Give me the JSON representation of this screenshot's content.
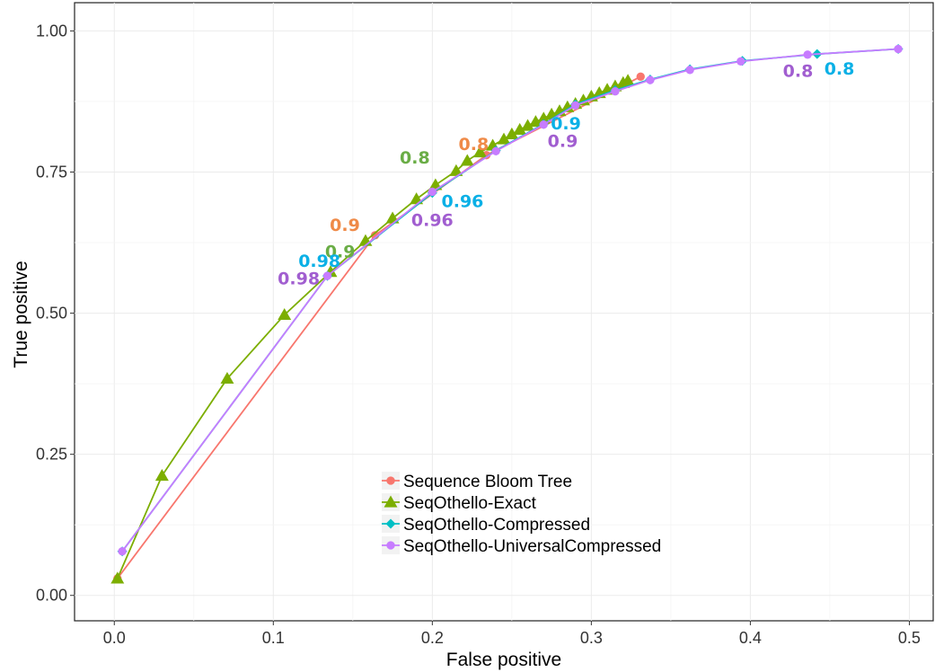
{
  "chart_data": {
    "type": "line",
    "xlabel": "False positive",
    "ylabel": "True positive",
    "xlim": [
      -0.025,
      0.515
    ],
    "ylim": [
      -0.045,
      1.05
    ],
    "x_ticks": [
      "0.0",
      "0.1",
      "0.2",
      "0.3",
      "0.4",
      "0.5"
    ],
    "y_ticks": [
      "0.00",
      "0.25",
      "0.50",
      "0.75",
      "1.00"
    ],
    "grid": true,
    "legend_position": "bottom-center",
    "series": [
      {
        "name": "Sequence Bloom Tree",
        "color": "#f8766d",
        "marker": "circle",
        "x": [
          0.002,
          0.164,
          0.234,
          0.331
        ],
        "y": [
          0.03,
          0.638,
          0.78,
          0.919
        ]
      },
      {
        "name": "SeqOthello-Exact",
        "color": "#7cae00",
        "marker": "triangle",
        "x": [
          0.002,
          0.03,
          0.071,
          0.107,
          0.136,
          0.158,
          0.175,
          0.19,
          0.202,
          0.215,
          0.222,
          0.23,
          0.238,
          0.245,
          0.25,
          0.255,
          0.26,
          0.265,
          0.27,
          0.275,
          0.28,
          0.285,
          0.29,
          0.295,
          0.3,
          0.305,
          0.31,
          0.315,
          0.32,
          0.323
        ],
        "y": [
          0.03,
          0.212,
          0.384,
          0.497,
          0.573,
          0.628,
          0.668,
          0.702,
          0.727,
          0.752,
          0.77,
          0.785,
          0.797,
          0.808,
          0.817,
          0.825,
          0.832,
          0.839,
          0.845,
          0.852,
          0.858,
          0.865,
          0.871,
          0.877,
          0.884,
          0.89,
          0.896,
          0.902,
          0.908,
          0.912
        ]
      },
      {
        "name": "SeqOthello-Compressed",
        "color": "#00bfc4",
        "marker": "diamond",
        "x": [
          0.005,
          0.134,
          0.2,
          0.24,
          0.27,
          0.29,
          0.315,
          0.337,
          0.362,
          0.395,
          0.442,
          0.493
        ],
        "y": [
          0.078,
          0.566,
          0.713,
          0.788,
          0.835,
          0.87,
          0.895,
          0.914,
          0.932,
          0.947,
          0.959,
          0.968
        ]
      },
      {
        "name": "SeqOthello-UniversalCompressed",
        "color": "#c77cff",
        "marker": "circle",
        "x": [
          0.005,
          0.134,
          0.2,
          0.24,
          0.27,
          0.29,
          0.315,
          0.337,
          0.362,
          0.394,
          0.436,
          0.493
        ],
        "y": [
          0.078,
          0.566,
          0.715,
          0.787,
          0.834,
          0.868,
          0.893,
          0.913,
          0.931,
          0.946,
          0.958,
          0.968
        ]
      }
    ],
    "annotations": [
      {
        "text": "0.8",
        "x": 0.226,
        "y": 0.8,
        "color": "#ef8a48"
      },
      {
        "text": "0.9",
        "x": 0.145,
        "y": 0.657,
        "color": "#ef8a48"
      },
      {
        "text": "0.8",
        "x": 0.189,
        "y": 0.776,
        "color": "#6aad46"
      },
      {
        "text": "0.9",
        "x": 0.142,
        "y": 0.61,
        "color": "#6aad46"
      },
      {
        "text": "0.98",
        "x": 0.129,
        "y": 0.593,
        "color": "#0ab0e6"
      },
      {
        "text": "0.96",
        "x": 0.219,
        "y": 0.699,
        "color": "#0ab0e6"
      },
      {
        "text": "0.9",
        "x": 0.284,
        "y": 0.837,
        "color": "#0ab0e6"
      },
      {
        "text": "0.8",
        "x": 0.456,
        "y": 0.934,
        "color": "#0ab0e6"
      },
      {
        "text": "0.98",
        "x": 0.116,
        "y": 0.562,
        "color": "#a15ed0"
      },
      {
        "text": "0.96",
        "x": 0.2,
        "y": 0.666,
        "color": "#a15ed0"
      },
      {
        "text": "0.9",
        "x": 0.282,
        "y": 0.806,
        "color": "#a15ed0"
      },
      {
        "text": "0.8",
        "x": 0.43,
        "y": 0.93,
        "color": "#a15ed0"
      }
    ]
  }
}
